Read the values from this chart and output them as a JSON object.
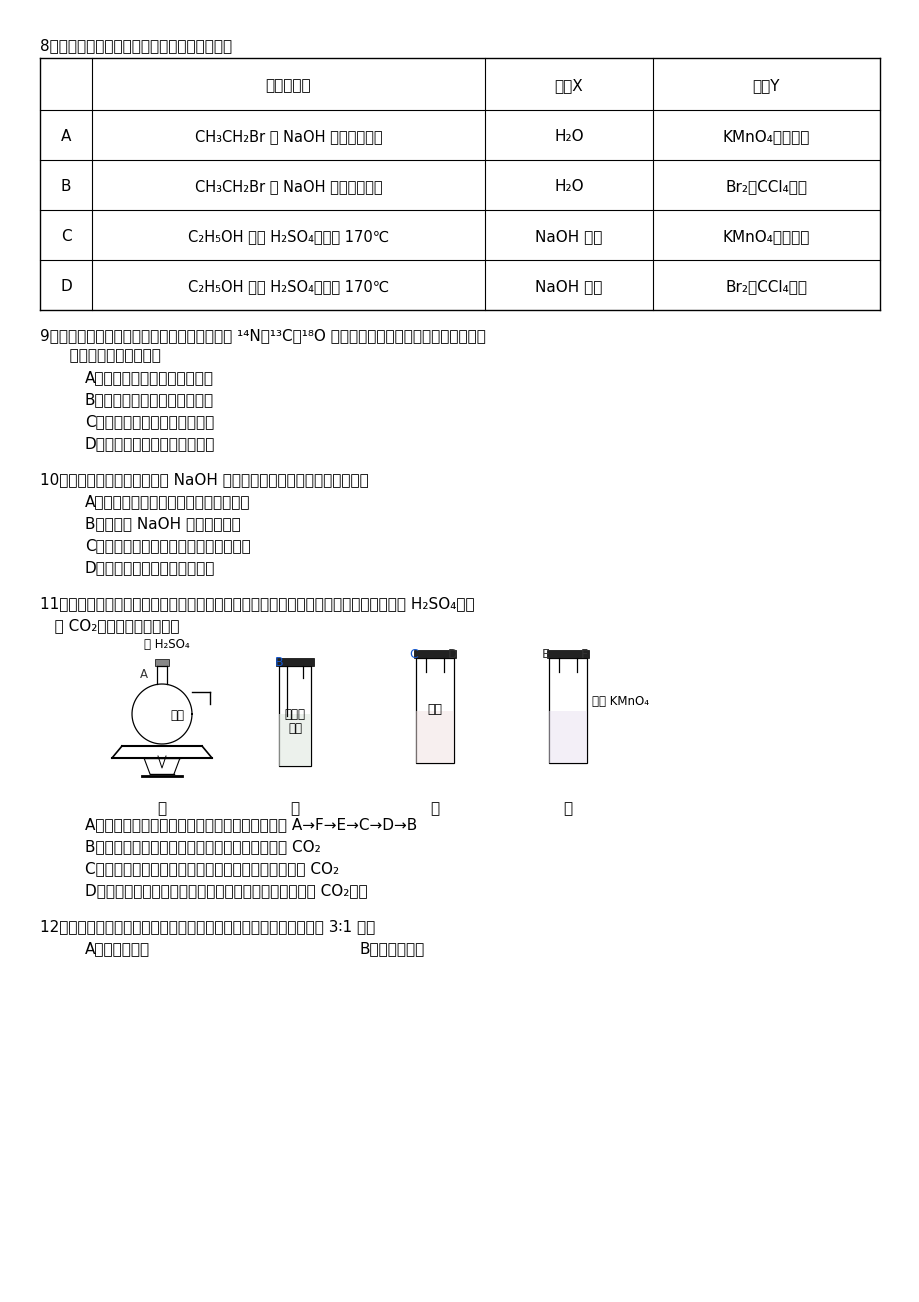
{
  "background_color": "#ffffff",
  "q8_title": "8．用右图所示装置检验乙烯时不需要除杂的是",
  "table_headers": [
    "",
    "乙烯的制备",
    "试剂X",
    "试剂Y"
  ],
  "table_rows": [
    [
      "A",
      "CH₃CH₂Br 与 NaOH 乙醇溶液共热",
      "H₂O",
      "KMnO₄酸性溶液"
    ],
    [
      "B",
      "CH₃CH₂Br 与 NaOH 乙醇溶液共热",
      "H₂O",
      "Br₂的CCl₄溶液"
    ],
    [
      "C",
      "C₂H₅OH 与浓 H₂SO₄加热至 170℃",
      "NaOH 溶液",
      "KMnO₄酸性溶液"
    ],
    [
      "D",
      "C₂H₅OH 与浓 H₂SO₄加热至 170℃",
      "NaOH 溶液",
      "Br₂的CCl₄溶液"
    ]
  ],
  "q9_title": "9．同温同压下，等体积的两容器内分别充满由 ¹⁴N、¹³C、¹⁸O 三种原子构成的一氧化氮和一氧化碳。",
  "q9_sub": "   下列有关说法正确的是",
  "q9_options": [
    "A．所含分子数和质量均不相同",
    "B．含有相同的分子数和电子数",
    "C．含有相同的质子数和中子数",
    "D．含有相同的分子数和中子数"
  ],
  "q10_title": "10．配制一定物质的量浓度的 NaOH 溶液时，造成所配溶液浓度偏低的是",
  "q10_options": [
    "A．洗涤后的容量瓶中留有少量蒸馏水．",
    "B．称量的 NaOH 固体已经潮解",
    "C．转移溶解液时，溶解液未冷却至室温",
    "D．定容时俯视容量瓶的刻度线"
  ],
  "q11_title1": "11．选用如图所示仪器中的两个或几个（内含物质）组装成实验装置，以验证木炭可被浓 H₂SO₄氧化",
  "q11_title2": "   成 CO₂，下列说法正确的是",
  "q11_options": [
    "A．按气流从左向右流向，连接装置的正确顺序是 A→F→E→C→D→B",
    "B．丁中溶液褪色，乙中溶液变浑浊说明甲中生成 CO₂",
    "C．丙中品红溶液褪色，乙中溶液变浑浊说明甲中生成 CO₂",
    "D．丁和丙中溶液都褪色，乙中溶液变浑浊，说明甲中有 CO₂生成"
  ],
  "q12_title": "12．下列化合物在核磁共振氢谱中能出现两组峰，且其峰面积之比为 3∶1 的有",
  "q12_optA": "A．乙酸异丙酯",
  "q12_optB": "B．乙酸叔丁酯"
}
